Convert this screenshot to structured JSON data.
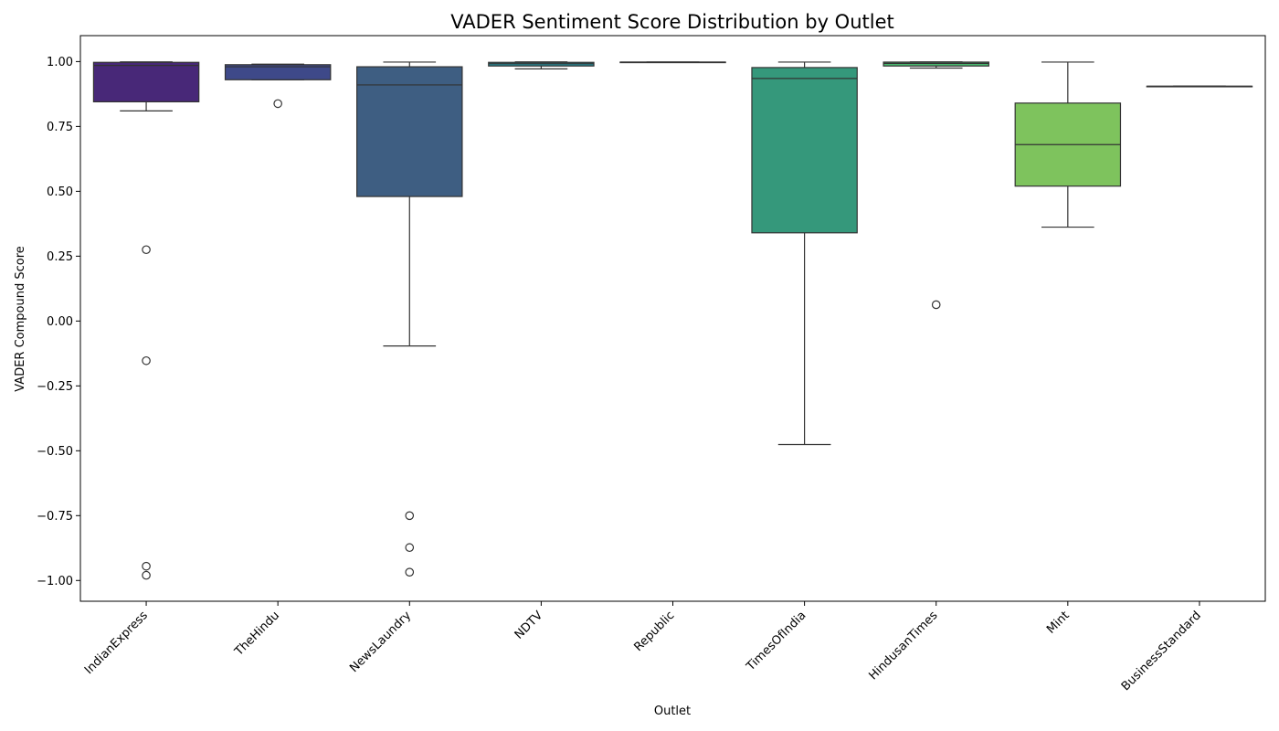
{
  "chart_data": {
    "type": "box",
    "title": "VADER Sentiment Score Distribution by Outlet",
    "xlabel": "Outlet",
    "ylabel": "VADER Compound Score",
    "ylim": [
      -1.08,
      1.1
    ],
    "yticks": [
      1.0,
      0.75,
      0.5,
      0.25,
      0.0,
      -0.25,
      -0.5,
      -0.75,
      -1.0
    ],
    "ytick_labels": [
      "1.00",
      "0.75",
      "0.50",
      "0.25",
      "0.00",
      "−0.25",
      "−0.50",
      "−0.75",
      "−1.00"
    ],
    "grid": false,
    "legend": "none",
    "categories": [
      "IndianExpress",
      "TheHindu",
      "NewsLaundry",
      "NDTV",
      "Republic",
      "TimesOfIndia",
      "HindusanTimes",
      "Mint",
      "BusinessStandard"
    ],
    "boxes": [
      {
        "outlet": "IndianExpress",
        "whisker_low": 0.81,
        "q1": 0.845,
        "median": 0.985,
        "q3": 0.997,
        "whisker_high": 0.999,
        "outliers": [
          0.275,
          -0.153,
          -0.945,
          -0.98
        ],
        "color": "#482878"
      },
      {
        "outlet": "TheHindu",
        "whisker_low": 0.93,
        "q1": 0.93,
        "median": 0.98,
        "q3": 0.988,
        "whisker_high": 0.99,
        "outliers": [
          0.838
        ],
        "color": "#3e4989"
      },
      {
        "outlet": "NewsLaundry",
        "whisker_low": -0.096,
        "q1": 0.48,
        "median": 0.91,
        "q3": 0.98,
        "whisker_high": 0.998,
        "outliers": [
          -0.75,
          -0.873,
          -0.968
        ],
        "color": "#3e5e82"
      },
      {
        "outlet": "NDTV",
        "whisker_low": 0.972,
        "q1": 0.983,
        "median": 0.992,
        "q3": 0.997,
        "whisker_high": 0.999,
        "outliers": [],
        "color": "#26828e"
      },
      {
        "outlet": "Republic",
        "whisker_low": 0.998,
        "q1": 0.998,
        "median": 0.998,
        "q3": 0.998,
        "whisker_high": 0.998,
        "outliers": [],
        "color": "#1f9e89"
      },
      {
        "outlet": "TimesOfIndia",
        "whisker_low": -0.476,
        "q1": 0.34,
        "median": 0.935,
        "q3": 0.977,
        "whisker_high": 0.998,
        "outliers": [],
        "color": "#35987b"
      },
      {
        "outlet": "HindusanTimes",
        "whisker_low": 0.975,
        "q1": 0.983,
        "median": 0.993,
        "q3": 0.998,
        "whisker_high": 0.999,
        "outliers": [
          0.063
        ],
        "color": "#4ab66e"
      },
      {
        "outlet": "Mint",
        "whisker_low": 0.362,
        "q1": 0.52,
        "median": 0.68,
        "q3": 0.84,
        "whisker_high": 0.998,
        "outliers": [],
        "color": "#7ec35d"
      },
      {
        "outlet": "BusinessStandard",
        "whisker_low": 0.905,
        "q1": 0.905,
        "median": 0.905,
        "q3": 0.905,
        "whisker_high": 0.905,
        "outliers": [],
        "color": "#bddf26"
      }
    ]
  }
}
